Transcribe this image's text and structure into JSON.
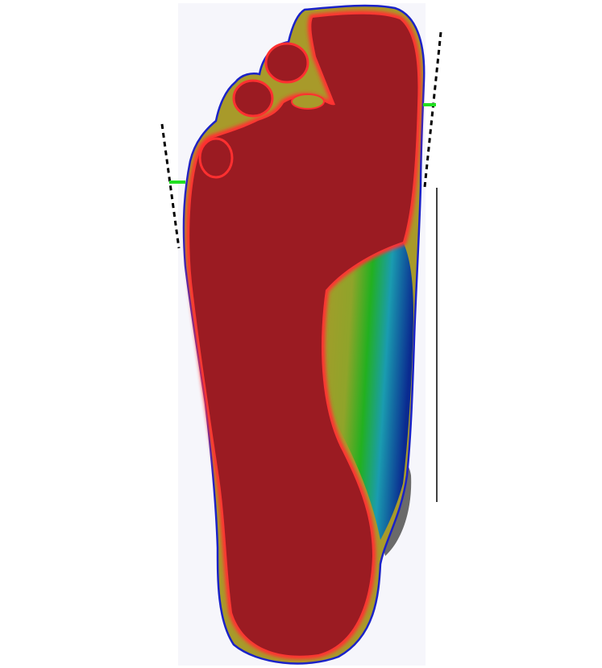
{
  "view": {
    "background": "#ffffff",
    "panel_background": "#f6f6fb"
  },
  "pressure_map": {
    "colors": {
      "max": "#9b1b22",
      "edge": "#ff3030",
      "high": "#a89a2a",
      "mid": "#22b020",
      "low": "#1a8fb0",
      "min": "#0a2a90",
      "outline": "#1a22c8",
      "shadow": "#6a6a6a"
    }
  },
  "guides": {
    "dashed_line_color": "#000000",
    "marker_color": "#22e022",
    "ruler_color": "#000000"
  }
}
